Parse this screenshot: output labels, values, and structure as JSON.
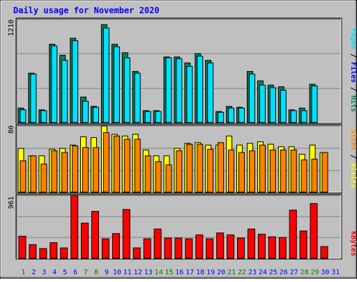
{
  "title": "Daily usage for November 2020",
  "colors": {
    "background": "#c0c0c0",
    "title": "#0000ff",
    "grid": "#808080",
    "weekday_label": "#0000ff",
    "weekend_label": "#007f00",
    "hits": "#00805c",
    "files": "#00e0ff",
    "visits": "#ffff00",
    "sites": "#ff8000",
    "kbytes": "#ff0000"
  },
  "legends": {
    "top": [
      {
        "text": "Pages",
        "color": "#00e0ff"
      },
      {
        "text": " / ",
        "color": "#000000"
      },
      {
        "text": "Files",
        "color": "#0000ff"
      },
      {
        "text": " / ",
        "color": "#000000"
      },
      {
        "text": "Hits",
        "color": "#00805c"
      }
    ],
    "middle": [
      {
        "text": "Sites",
        "color": "#ff8000"
      },
      {
        "text": " / ",
        "color": "#000000"
      },
      {
        "text": "Visits",
        "color": "#ffff00"
      }
    ],
    "bottom": [
      {
        "text": "KBytes",
        "color": "#ff0000"
      }
    ]
  },
  "chart_data": {
    "type": "bar",
    "title": "Daily usage for November 2020",
    "categories": [
      "1",
      "2",
      "3",
      "4",
      "5",
      "6",
      "7",
      "8",
      "9",
      "10",
      "11",
      "12",
      "13",
      "14",
      "15",
      "16",
      "17",
      "18",
      "19",
      "20",
      "21",
      "22",
      "23",
      "24",
      "25",
      "26",
      "27",
      "28",
      "29",
      "30",
      "31"
    ],
    "weekend_days": [
      "1",
      "7",
      "8",
      "14",
      "15",
      "21",
      "22",
      "28",
      "29"
    ],
    "panels": [
      {
        "name": "hits-files-pages",
        "max_label": "1210",
        "ymax": 1210,
        "series": [
          {
            "name": "Hits",
            "values": [
              170,
              580,
              150,
              920,
              790,
              990,
              300,
              190,
              1150,
              920,
              820,
              600,
              140,
              140,
              770,
              770,
              700,
              810,
              730,
              130,
              190,
              180,
              600,
              490,
              440,
              420,
              150,
              170,
              450,
              0,
              0
            ]
          },
          {
            "name": "Files",
            "values": [
              150,
              570,
              140,
              900,
              730,
              960,
              250,
              180,
              1110,
              890,
              760,
              580,
              130,
              130,
              760,
              750,
              660,
              780,
              700,
              120,
              170,
              170,
              570,
              440,
              410,
              380,
              140,
              140,
              430,
              0,
              0
            ]
          }
        ]
      },
      {
        "name": "visits-sites",
        "max_label": "80",
        "ymax": 80,
        "series": [
          {
            "name": "Visits",
            "values": [
              53,
              44,
              44,
              52,
              53,
              57,
              67,
              66,
              80,
              70,
              68,
              70,
              51,
              44,
              44,
              53,
              59,
              60,
              57,
              57,
              68,
              57,
              59,
              61,
              58,
              55,
              55,
              46,
              57,
              48,
              0
            ]
          },
          {
            "name": "Sites",
            "values": [
              38,
              44,
              34,
              50,
              48,
              56,
              54,
              54,
              72,
              68,
              64,
              64,
              44,
              37,
              33,
              50,
              58,
              58,
              52,
              60,
              51,
              48,
              50,
              57,
              51,
              51,
              51,
              39,
              40,
              48,
              0
            ]
          }
        ]
      },
      {
        "name": "kbytes",
        "max_label": "961",
        "ymax": 961,
        "series": [
          {
            "name": "KBytes",
            "values": [
              340,
              210,
              150,
              240,
              160,
              961,
              540,
              720,
              300,
              380,
              750,
              160,
              300,
              450,
              310,
              310,
              300,
              360,
              300,
              390,
              360,
              310,
              450,
              370,
              330,
              320,
              740,
              420,
              840,
              180,
              0
            ]
          }
        ]
      }
    ]
  }
}
